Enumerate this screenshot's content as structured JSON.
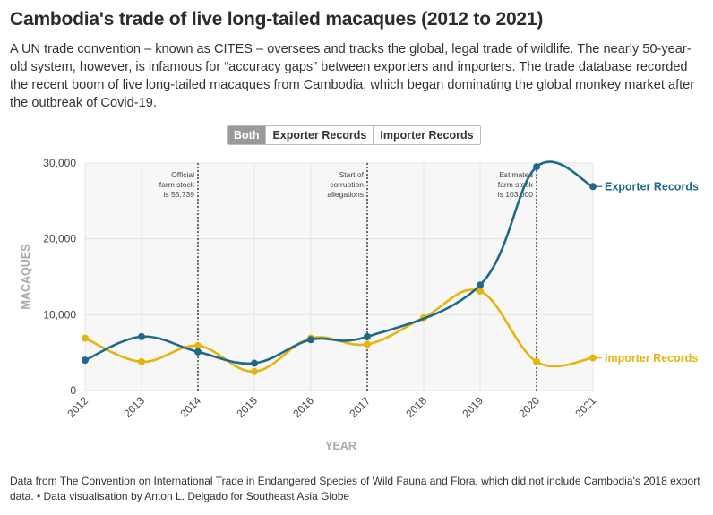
{
  "title": "Cambodia's trade of live long-tailed macaques (2012 to 2021)",
  "subtitle": "A UN trade convention – known as CITES – oversees and tracks the global, legal trade of wildlife. The nearly 50-year-old system, however, is infamous for “accuracy gaps” between exporters and importers. The trade database recorded the recent boom of live long-tailed macaques from Cambodia, which began dominating the global monkey market after the outbreak of Covid-19.",
  "toggles": [
    "Both",
    "Exporter Records",
    "Importer Records"
  ],
  "active_toggle": "Both",
  "footnote": "Data from The Convention on International Trade in Endangered Species of Wild Fauna and Flora, which did not include Cambodia's 2018 export data. • Data visualisation by Anton L. Delgado for Southeast Asia Globe",
  "chart_data": {
    "type": "line",
    "xlabel": "YEAR",
    "ylabel": "MACAQUES",
    "x": [
      "2012",
      "2013",
      "2014",
      "2015",
      "2016",
      "2017",
      "2018",
      "2019",
      "2020",
      "2021"
    ],
    "yticks": [
      "0",
      "10,000",
      "20,000",
      "30,000"
    ],
    "ytick_values": [
      0,
      10000,
      20000,
      30000
    ],
    "ylim": [
      0,
      30000
    ],
    "grid": true,
    "series": [
      {
        "name": "Exporter Records",
        "color": "#1f6a8c",
        "values": [
          4000,
          7100,
          5100,
          3600,
          6700,
          7100,
          null,
          13900,
          29500,
          26900
        ]
      },
      {
        "name": "Importer Records",
        "color": "#e5b40e",
        "values": [
          6900,
          3800,
          5900,
          2500,
          6900,
          6100,
          9600,
          13100,
          3800,
          4300
        ]
      }
    ],
    "annotations": [
      {
        "x": "2014",
        "lines": [
          "Official",
          "farm stock",
          "is 55,739"
        ]
      },
      {
        "x": "2017",
        "lines": [
          "Start of",
          "corruption",
          "allegations"
        ]
      },
      {
        "x": "2020",
        "lines": [
          "Estimated",
          "farm stock",
          "is 103,000"
        ]
      }
    ]
  }
}
